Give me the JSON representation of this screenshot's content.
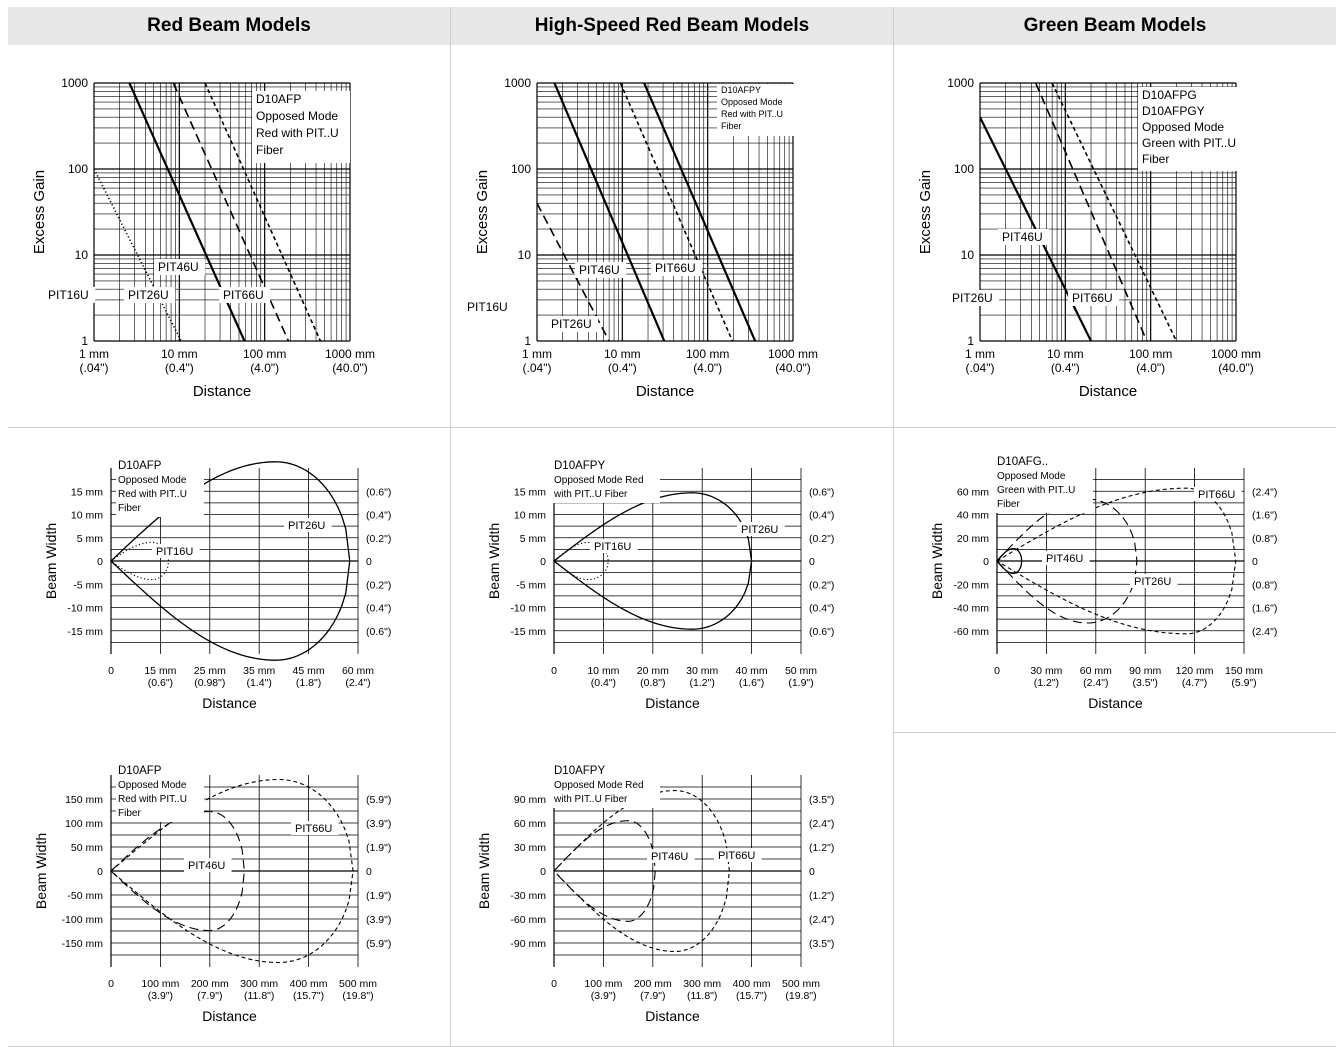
{
  "headers": [
    "Red Beam Models",
    "High-Speed Red Beam Models",
    "Green Beam Models"
  ],
  "gain_ticks": [
    "1000",
    "100",
    "10",
    "1"
  ],
  "gain_x_ticks": [
    {
      "mm": "1 mm",
      "in": "(.04\")"
    },
    {
      "mm": "10 mm",
      "in": "(0.4\")"
    },
    {
      "mm": "100 mm",
      "in": "(4.0\")"
    },
    {
      "mm": "1000 mm",
      "in": "(40.0\")"
    }
  ],
  "chart_data": [
    {
      "type": "line",
      "x_scale": "log",
      "y_scale": "log",
      "xlabel": "Distance",
      "ylabel": "Excess Gain",
      "xlim": [
        1,
        1000
      ],
      "ylim": [
        1,
        1000
      ],
      "legend_lines": [
        "D10AFP",
        "Opposed Mode",
        "Red with PIT..U",
        "Fiber"
      ],
      "series": [
        {
          "name": "PIT16U",
          "style": "dotted",
          "x": [
            1,
            10.5
          ],
          "y": [
            100,
            1
          ]
        },
        {
          "name": "PIT26U",
          "style": "solid",
          "x": [
            2.6,
            58
          ],
          "y": [
            1000,
            1
          ]
        },
        {
          "name": "PIT46U",
          "style": "dashed",
          "x": [
            8.5,
            190
          ],
          "y": [
            1000,
            1
          ]
        },
        {
          "name": "PIT66U",
          "style": "short-dash",
          "x": [
            20,
            450
          ],
          "y": [
            1000,
            1
          ]
        }
      ]
    },
    {
      "type": "line",
      "x_scale": "log",
      "y_scale": "log",
      "xlabel": "Distance",
      "ylabel": "Excess Gain",
      "xlim": [
        1,
        1000
      ],
      "ylim": [
        1,
        1000
      ],
      "legend_lines": [
        "D10AFPY",
        "Opposed Mode",
        "Red with PIT..U",
        "Fiber"
      ],
      "series": [
        {
          "name": "PIT16U",
          "style": "dashed",
          "x": [
            1,
            7
          ],
          "y": [
            40,
            1
          ]
        },
        {
          "name": "PIT26U",
          "style": "solid",
          "x": [
            1.6,
            31
          ],
          "y": [
            1000,
            1
          ]
        },
        {
          "name": "PIT46U",
          "style": "short-dash",
          "x": [
            9.5,
            195
          ],
          "y": [
            1000,
            1
          ]
        },
        {
          "name": "PIT66U",
          "style": "solid",
          "x": [
            18,
            360
          ],
          "y": [
            1000,
            1
          ]
        }
      ]
    },
    {
      "type": "line",
      "x_scale": "log",
      "y_scale": "log",
      "xlabel": "Distance",
      "ylabel": "Excess Gain",
      "xlim": [
        1,
        1000
      ],
      "ylim": [
        1,
        1000
      ],
      "legend_lines": [
        "D10AFPG",
        "D10AFPGY",
        "Opposed Mode",
        "Green with PIT..U",
        "Fiber"
      ],
      "series": [
        {
          "name": "PIT26U",
          "style": "solid",
          "x": [
            1,
            20
          ],
          "y": [
            400,
            1
          ]
        },
        {
          "name": "PIT46U",
          "style": "dashed",
          "x": [
            4.5,
            90
          ],
          "y": [
            1000,
            1
          ]
        },
        {
          "name": "PIT66U",
          "style": "short-dash",
          "x": [
            7,
            200
          ],
          "y": [
            1000,
            1
          ]
        }
      ]
    },
    {
      "type": "line",
      "xlabel": "Distance",
      "ylabel": "Beam Width",
      "xlim": [
        0,
        60
      ],
      "ylim": [
        -15,
        15
      ],
      "y_ticks": [
        "15 mm",
        "10 mm",
        "5 mm",
        "0",
        "-5 mm",
        "-10 mm",
        "-15 mm"
      ],
      "y_right_ticks": [
        "(0.6\")",
        "(0.4\")",
        "(0.2\")",
        "0",
        "(0.2\")",
        "(0.4\")",
        "(0.6\")"
      ],
      "x_ticks": [
        {
          "mm": "0",
          "in": ""
        },
        {
          "mm": "15 mm",
          "in": "(0.6\")"
        },
        {
          "mm": "25 mm",
          "in": "(0.98\")"
        },
        {
          "mm": "35 mm",
          "in": "(1.4\")"
        },
        {
          "mm": "45 mm",
          "in": "(1.8\")"
        },
        {
          "mm": "60 mm",
          "in": "(2.4\")"
        }
      ],
      "legend_lines": [
        "D10AFP",
        "Opposed Mode",
        "Red with PIT..U",
        "Fiber"
      ],
      "series": [
        {
          "name": "PIT26U",
          "style": "solid",
          "range": 58,
          "peak_x": 40,
          "half_width": 16
        },
        {
          "name": "PIT16U",
          "style": "dotted",
          "range": 14,
          "peak_x": 10,
          "half_width": 3
        }
      ]
    },
    {
      "type": "line",
      "xlabel": "Distance",
      "ylabel": "Beam Width",
      "xlim": [
        0,
        50
      ],
      "ylim": [
        -15,
        15
      ],
      "y_ticks": [
        "15 mm",
        "10 mm",
        "5 mm",
        "0",
        "-5 mm",
        "-10 mm",
        "-15 mm"
      ],
      "y_right_ticks": [
        "(0.6\")",
        "(0.4\")",
        "(0.2\")",
        "0",
        "(0.2\")",
        "(0.4\")",
        "(0.6\")"
      ],
      "x_ticks": [
        {
          "mm": "0",
          "in": ""
        },
        {
          "mm": "10 mm",
          "in": "(0.4\")"
        },
        {
          "mm": "20 mm",
          "in": "(0.8\")"
        },
        {
          "mm": "30 mm",
          "in": "(1.2\")"
        },
        {
          "mm": "40 mm",
          "in": "(1.6\")"
        },
        {
          "mm": "50 mm",
          "in": "(1.9\")"
        }
      ],
      "legend_lines": [
        "D10AFPY",
        "Opposed Mode Red",
        "with PIT..U Fiber"
      ],
      "series": [
        {
          "name": "PIT26U",
          "style": "solid",
          "range": 40,
          "peak_x": 28,
          "half_width": 11
        },
        {
          "name": "PIT16U",
          "style": "dotted",
          "range": 11,
          "peak_x": 7,
          "half_width": 3
        }
      ]
    },
    {
      "type": "line",
      "xlabel": "Distance",
      "ylabel": "Beam Width",
      "xlim": [
        0,
        150
      ],
      "ylim": [
        -60,
        60
      ],
      "y_ticks": [
        "60 mm",
        "40 mm",
        "20 mm",
        "0",
        "-20 mm",
        "-40 mm",
        "-60 mm"
      ],
      "y_right_ticks": [
        "(2.4\")",
        "(1.6\")",
        "(0.8\")",
        "0",
        "(0.8\")",
        "(1.6\")",
        "(2.4\")"
      ],
      "x_ticks": [
        {
          "mm": "0",
          "in": ""
        },
        {
          "mm": "30 mm",
          "in": "(1.2\")"
        },
        {
          "mm": "60 mm",
          "in": "(2.4\")"
        },
        {
          "mm": "90 mm",
          "in": "(3.5\")"
        },
        {
          "mm": "120 mm",
          "in": "(4.7\")"
        },
        {
          "mm": "150 mm",
          "in": "(5.9\")"
        }
      ],
      "legend_lines": [
        "D10AFG..",
        "Opposed Mode",
        "Green with PIT..U",
        "Fiber"
      ],
      "series": [
        {
          "name": "PIT66U",
          "style": "short-dash",
          "range": 145,
          "peak_x": 115,
          "half_width": 47
        },
        {
          "name": "PIT46U",
          "style": "dashed",
          "range": 85,
          "peak_x": 55,
          "half_width": 40
        },
        {
          "name": "PIT26U",
          "style": "solid",
          "range": 15,
          "peak_x": 10,
          "half_width": 8
        }
      ]
    },
    {
      "type": "line",
      "xlabel": "Distance",
      "ylabel": "Beam Width",
      "xlim": [
        0,
        500
      ],
      "ylim": [
        -150,
        150
      ],
      "y_ticks": [
        "150 mm",
        "100 mm",
        "50 mm",
        "0",
        "-50 mm",
        "-100 mm",
        "-150 mm"
      ],
      "y_right_ticks": [
        "(5.9\")",
        "(3.9\")",
        "(1.9\")",
        "0",
        "(1.9\")",
        "(3.9\")",
        "(5.9\")"
      ],
      "x_ticks": [
        {
          "mm": "0",
          "in": ""
        },
        {
          "mm": "100 mm",
          "in": "(3.9\")"
        },
        {
          "mm": "200 mm",
          "in": "(7.9\")"
        },
        {
          "mm": "300 mm",
          "in": "(11.8\")"
        },
        {
          "mm": "400 mm",
          "in": "(15.7\")"
        },
        {
          "mm": "500 mm",
          "in": "(19.8\")"
        }
      ],
      "legend_lines": [
        "D10AFP",
        "Opposed Mode",
        "Red with PIT..U",
        "Fiber"
      ],
      "series": [
        {
          "name": "PIT66U",
          "style": "short-dash",
          "range": 490,
          "peak_x": 340,
          "half_width": 143
        },
        {
          "name": "PIT46U",
          "style": "dashed",
          "range": 270,
          "peak_x": 200,
          "half_width": 93
        }
      ]
    },
    {
      "type": "line",
      "xlabel": "Distance",
      "ylabel": "Beam Width",
      "xlim": [
        0,
        500
      ],
      "ylim": [
        -105,
        105
      ],
      "y_ticks": [
        "90 mm",
        "60 mm",
        "30 mm",
        "0",
        "-30 mm",
        "-60 mm",
        "-90 mm"
      ],
      "y_right_ticks": [
        "(3.5\")",
        "(2.4\")",
        "(1.2\")",
        "0",
        "(1.2\")",
        "(2.4\")",
        "(3.5\")"
      ],
      "x_ticks": [
        {
          "mm": "0",
          "in": ""
        },
        {
          "mm": "100 mm",
          "in": "(3.9\")"
        },
        {
          "mm": "200 mm",
          "in": "(7.9\")"
        },
        {
          "mm": "300 mm",
          "in": "(11.8\")"
        },
        {
          "mm": "400 mm",
          "in": "(15.7\")"
        },
        {
          "mm": "500 mm",
          "in": "(19.8\")"
        }
      ],
      "legend_lines": [
        "D10AFPY",
        "Opposed Mode Red",
        "with PIT..U Fiber"
      ],
      "series": [
        {
          "name": "PIT66U",
          "style": "short-dash",
          "range": 355,
          "peak_x": 245,
          "half_width": 88
        },
        {
          "name": "PIT46U",
          "style": "dashed",
          "range": 205,
          "peak_x": 150,
          "half_width": 55
        }
      ]
    }
  ]
}
